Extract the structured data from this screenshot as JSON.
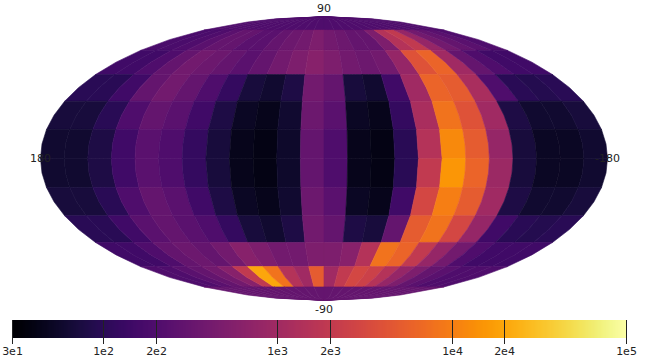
{
  "chart_data": {
    "type": "skymap",
    "log": true,
    "color": "inferno",
    "xlim": [
      180,
      -180
    ],
    "xticks": [
      180,
      -180
    ],
    "ylim": [
      -90,
      90
    ],
    "yticks": [
      90,
      -90
    ],
    "lon_bins": [
      180,
      165,
      150,
      135,
      120,
      105,
      90,
      75,
      60,
      45,
      30,
      15,
      0,
      -15,
      -30,
      -45,
      -60,
      -75,
      -90,
      -105,
      -120,
      -135,
      -150,
      -165,
      -180
    ],
    "lat_bins": [
      90,
      75,
      60,
      45,
      30,
      15,
      0,
      -15,
      -30,
      -45,
      -60,
      -75,
      -90
    ],
    "cells": [
      [
        200,
        200,
        200,
        200,
        200,
        200,
        200,
        200,
        200,
        200,
        200,
        200,
        200,
        200,
        200,
        200,
        200,
        200,
        200,
        200,
        200,
        200,
        200,
        200
      ],
      [
        180,
        180,
        200,
        250,
        300,
        300,
        250,
        250,
        300,
        350,
        400,
        500,
        400,
        350,
        300,
        300,
        500,
        1500,
        2000,
        800,
        400,
        300,
        250,
        200
      ],
      [
        150,
        150,
        200,
        300,
        400,
        350,
        300,
        250,
        300,
        400,
        500,
        600,
        500,
        400,
        350,
        400,
        800,
        4000,
        6000,
        1000,
        300,
        200,
        150,
        150
      ],
      [
        100,
        100,
        150,
        300,
        400,
        300,
        200,
        120,
        70,
        60,
        80,
        400,
        300,
        70,
        60,
        150,
        1000,
        6000,
        5000,
        1200,
        200,
        100,
        90,
        100
      ],
      [
        70,
        70,
        100,
        200,
        300,
        250,
        150,
        80,
        50,
        45,
        60,
        350,
        250,
        50,
        45,
        120,
        1200,
        8000,
        4000,
        1000,
        80,
        60,
        60,
        70
      ],
      [
        60,
        60,
        80,
        150,
        250,
        200,
        120,
        70,
        45,
        40,
        55,
        300,
        200,
        45,
        40,
        100,
        1500,
        12000,
        5000,
        800,
        70,
        50,
        50,
        60
      ],
      [
        60,
        60,
        80,
        150,
        250,
        200,
        120,
        70,
        45,
        40,
        55,
        300,
        200,
        45,
        40,
        100,
        2000,
        15000,
        6000,
        900,
        70,
        50,
        50,
        60
      ],
      [
        70,
        70,
        100,
        200,
        300,
        250,
        150,
        80,
        50,
        45,
        60,
        350,
        250,
        50,
        45,
        150,
        3000,
        10000,
        5000,
        1000,
        80,
        60,
        60,
        70
      ],
      [
        100,
        100,
        150,
        250,
        300,
        250,
        200,
        120,
        70,
        60,
        80,
        400,
        300,
        80,
        70,
        300,
        5000,
        8000,
        3000,
        800,
        150,
        100,
        90,
        100
      ],
      [
        150,
        150,
        200,
        300,
        350,
        300,
        400,
        600,
        500,
        400,
        400,
        500,
        500,
        600,
        1500,
        8000,
        6000,
        2000,
        800,
        400,
        200,
        150,
        150,
        150
      ],
      [
        200,
        200,
        250,
        300,
        400,
        600,
        2000,
        20000,
        8000,
        1500,
        1000,
        5000,
        1000,
        2000,
        3000,
        2500,
        1500,
        800,
        500,
        300,
        250,
        200,
        200,
        200
      ],
      [
        300,
        300,
        300,
        300,
        300,
        300,
        300,
        300,
        300,
        300,
        300,
        300,
        300,
        300,
        300,
        300,
        300,
        300,
        300,
        300,
        300,
        300,
        300,
        300
      ]
    ],
    "colorbar": {
      "range": [
        30,
        100000
      ],
      "ticks": [
        {
          "value": 30,
          "label": "3e1"
        },
        {
          "value": 100,
          "label": "1e2"
        },
        {
          "value": 200,
          "label": "2e2"
        },
        {
          "value": 1000,
          "label": "1e3"
        },
        {
          "value": 2000,
          "label": "2e3"
        },
        {
          "value": 10000,
          "label": "1e4"
        },
        {
          "value": 20000,
          "label": "2e4"
        },
        {
          "value": 100000,
          "label": "1e5"
        }
      ]
    }
  }
}
